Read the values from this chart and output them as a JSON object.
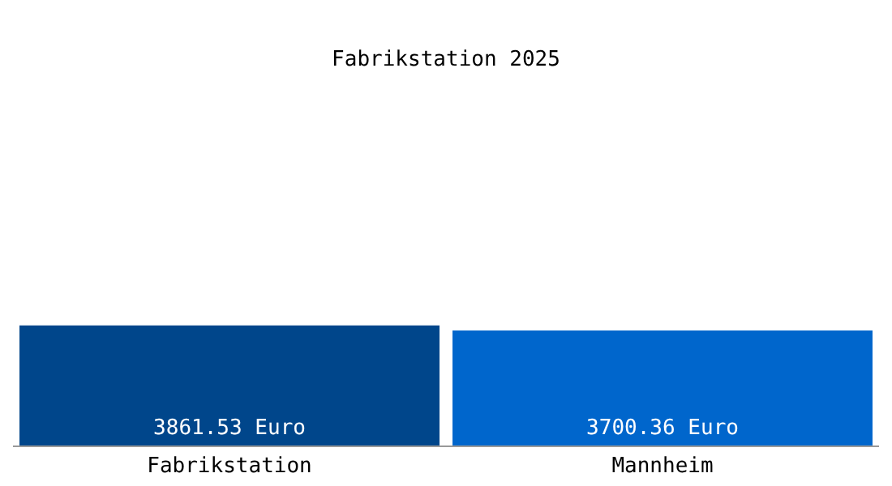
{
  "chart_data": {
    "type": "bar",
    "title": "Fabrikstation 2025",
    "categories": [
      "Fabrikstation",
      "Mannheim"
    ],
    "values": [
      3861.53,
      3700.36
    ],
    "colors": [
      "#00468b",
      "#0066cc"
    ],
    "value_labels": [
      "3861.53 Euro",
      "3700.36 Euro"
    ],
    "grid": false,
    "legend": false
  }
}
